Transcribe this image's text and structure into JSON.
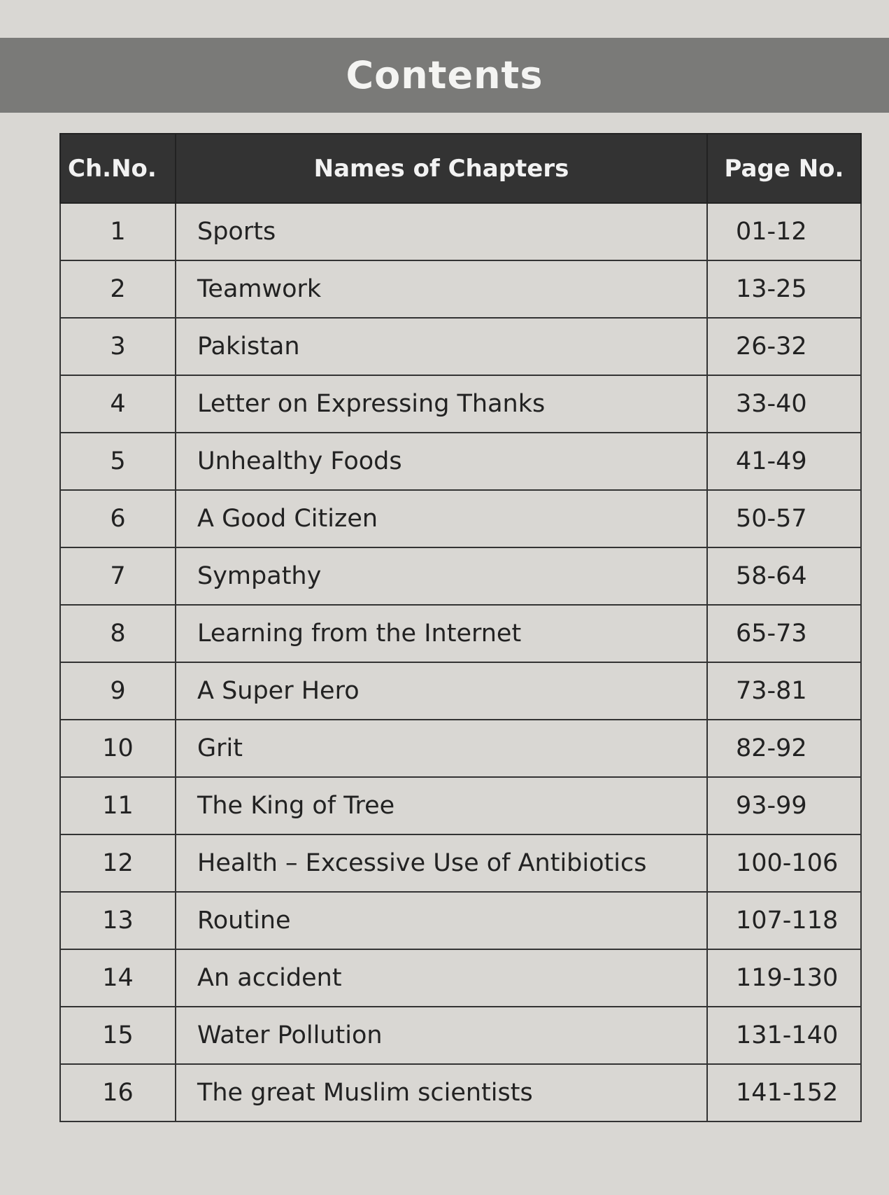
{
  "header": {
    "title": "Contents"
  },
  "table": {
    "columns": [
      "Ch.No.",
      "Names of Chapters",
      "Page No."
    ],
    "rows": [
      [
        "1",
        "Sports",
        "01-12"
      ],
      [
        "2",
        "Teamwork",
        "13-25"
      ],
      [
        "3",
        "Pakistan",
        "26-32"
      ],
      [
        "4",
        "Letter on Expressing Thanks",
        "33-40"
      ],
      [
        "5",
        "Unhealthy Foods",
        "41-49"
      ],
      [
        "6",
        "A Good Citizen",
        "50-57"
      ],
      [
        "7",
        "Sympathy",
        "58-64"
      ],
      [
        "8",
        "Learning from the Internet",
        "65-73"
      ],
      [
        "9",
        "A Super Hero",
        "73-81"
      ],
      [
        "10",
        "Grit",
        "82-92"
      ],
      [
        "11",
        "The King of Tree",
        "93-99"
      ],
      [
        "12",
        "Health – Excessive Use of Antibiotics",
        "100-106"
      ],
      [
        "13",
        "Routine",
        "107-118"
      ],
      [
        "14",
        "An accident",
        "119-130"
      ],
      [
        "15",
        "Water Pollution",
        "131-140"
      ],
      [
        "16",
        "The great Muslim scientists",
        "141-152"
      ]
    ]
  }
}
